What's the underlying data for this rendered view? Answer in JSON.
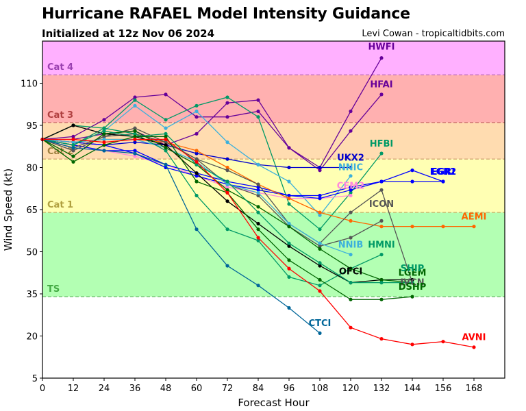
{
  "header": {
    "title": "Hurricane RAFAEL Model Intensity Guidance",
    "subtitle": "Initialized at 12z Nov 06 2024",
    "credit": "Levi Cowan - tropicaltidbits.com"
  },
  "chart_data": {
    "type": "line",
    "title": "Hurricane RAFAEL Model Intensity Guidance",
    "subtitle": "Initialized at 12z Nov 06 2024",
    "xlabel": "Forecast Hour",
    "ylabel": "Wind Speed (kt)",
    "xlim": [
      0,
      180
    ],
    "ylim": [
      5,
      125
    ],
    "xticks": [
      0,
      12,
      24,
      36,
      48,
      60,
      72,
      84,
      96,
      108,
      120,
      132,
      144,
      156,
      168
    ],
    "yticks": [
      5,
      20,
      35,
      50,
      65,
      80,
      95,
      110
    ],
    "grid": false,
    "legend": "inline labels at line ends",
    "bands": [
      {
        "label": "TS",
        "from": 34,
        "to": 64,
        "fill": "#b3ffb3",
        "line": "#66bb66",
        "text": "#44aa44"
      },
      {
        "label": "Cat 1",
        "from": 64,
        "to": 83,
        "fill": "#ffffb3",
        "line": "#c8b068",
        "text": "#b0a040"
      },
      {
        "label": "Cat 2",
        "from": 83,
        "to": 96,
        "fill": "#ffdcb0",
        "line": "#c89868",
        "text": "#a08040"
      },
      {
        "label": "Cat 3",
        "from": 96,
        "to": 113,
        "fill": "#ffb0b0",
        "line": "#c86868",
        "text": "#b04040"
      },
      {
        "label": "Cat 4",
        "from": 113,
        "to": 125,
        "fill": "#ffb0ff",
        "line": "#b868b8",
        "text": "#9a40b0"
      }
    ],
    "series": [
      {
        "name": "HWFI",
        "color": "#660099",
        "x": [
          0,
          12,
          24,
          36,
          48,
          60,
          72,
          84,
          96,
          108,
          120,
          132
        ],
        "y": [
          90,
          91,
          97,
          105,
          106,
          98,
          98,
          100,
          87,
          80,
          100,
          119
        ],
        "label_pos": [
          132,
          122
        ]
      },
      {
        "name": "HFAI",
        "color": "#660099",
        "x": [
          0,
          12,
          24,
          36,
          48,
          60,
          72,
          84,
          96,
          108,
          120,
          132
        ],
        "y": [
          90,
          90,
          92,
          93,
          88,
          92,
          103,
          104,
          87,
          79,
          93,
          106
        ],
        "label_pos": [
          132,
          108.5
        ]
      },
      {
        "name": "HFBI",
        "color": "#009966",
        "x": [
          0,
          12,
          24,
          36,
          48,
          60,
          72,
          84,
          96,
          108,
          120,
          132
        ],
        "y": [
          90,
          95,
          94,
          104,
          97,
          102,
          105,
          98,
          67,
          58,
          71,
          85
        ],
        "label_pos": [
          132,
          87.5
        ]
      },
      {
        "name": "UKX2",
        "color": "#0000cc",
        "x": [
          0,
          12,
          24,
          36,
          48,
          60,
          72,
          84,
          96,
          108,
          120
        ],
        "y": [
          90,
          89,
          88,
          89,
          88,
          85,
          83,
          81,
          80,
          80,
          80
        ],
        "label_pos": [
          120,
          82.5
        ]
      },
      {
        "name": "NNIC",
        "color": "#3cb0dc",
        "x": [
          0,
          12,
          24,
          36,
          48,
          60,
          72,
          84,
          96,
          108,
          120
        ],
        "y": [
          90,
          88,
          93,
          102,
          94,
          100,
          89,
          81,
          75,
          63,
          77
        ],
        "label_pos": [
          120,
          79
        ]
      },
      {
        "name": "CEM2",
        "color": "#ff88dd",
        "x": [
          0,
          12,
          24,
          36,
          48,
          60,
          72,
          84,
          96,
          108,
          120
        ],
        "y": [
          90,
          87,
          86,
          84,
          81,
          77,
          73,
          71,
          69,
          69,
          70
        ],
        "label_pos": [
          120,
          72.5
        ]
      },
      {
        "name": "EGRI",
        "color": "#0000ff",
        "x": [
          0,
          12,
          24,
          36,
          48,
          60,
          72,
          84,
          96,
          108,
          120,
          132,
          144,
          156
        ],
        "y": [
          90,
          88,
          86,
          86,
          81,
          78,
          75,
          73,
          70,
          70,
          73,
          75,
          79,
          75
        ],
        "label_pos": [
          156,
          77.5
        ]
      },
      {
        "name": "EGR2",
        "color": "#0000ff",
        "x": [
          0,
          12,
          24,
          36,
          48,
          60,
          72,
          84,
          96,
          108,
          120,
          132,
          144,
          156
        ],
        "y": [
          90,
          89,
          88,
          85,
          80,
          77,
          74,
          72,
          70,
          69,
          72,
          75,
          75,
          75
        ],
        "label_pos": [
          156,
          77.5
        ]
      },
      {
        "name": "AEMI",
        "color": "#ff6600",
        "x": [
          0,
          12,
          24,
          36,
          48,
          60,
          72,
          84,
          96,
          108,
          120,
          132,
          144,
          156,
          168
        ],
        "y": [
          90,
          89,
          90,
          90,
          89,
          86,
          80,
          74,
          69,
          64,
          61,
          59,
          59,
          59,
          59
        ],
        "label_pos": [
          168,
          61.5
        ]
      },
      {
        "name": "ICON",
        "color": "#555555",
        "x": [
          0,
          12,
          24,
          36,
          48,
          60,
          72,
          84,
          96,
          108,
          120,
          132,
          144
        ],
        "y": [
          90,
          86,
          91,
          94,
          89,
          83,
          79,
          74,
          60,
          53,
          64,
          72,
          39
        ],
        "label_pos": [
          132,
          66
        ]
      },
      {
        "name": "IVCN",
        "color": "#555555",
        "x": [
          0,
          12,
          24,
          36,
          48,
          60,
          72,
          84,
          96,
          108,
          120,
          132
        ],
        "y": [
          90,
          87,
          91,
          92,
          89,
          83,
          74,
          70,
          59,
          52,
          55,
          61
        ],
        "label_pos": [
          144,
          38
        ]
      },
      {
        "name": "NNIB",
        "color": "#3cb0dc",
        "x": [
          0,
          12,
          24,
          36,
          48,
          60,
          72,
          84,
          96,
          108,
          120
        ],
        "y": [
          90,
          89,
          90,
          90,
          87,
          82,
          74,
          71,
          60,
          53,
          49
        ],
        "label_pos": [
          120,
          51.5
        ]
      },
      {
        "name": "HMNI",
        "color": "#009966",
        "x": [
          0,
          12,
          24,
          36,
          48,
          60,
          72,
          84,
          96,
          108,
          120,
          132
        ],
        "y": [
          90,
          88,
          94,
          92,
          86,
          70,
          58,
          54,
          41,
          38,
          44,
          49
        ],
        "label_pos": [
          132,
          51.5
        ]
      },
      {
        "name": "OFCI",
        "color": "#000000",
        "x": [
          0,
          12,
          24,
          36,
          48,
          60,
          72,
          84,
          96,
          108,
          120,
          132,
          144
        ],
        "y": [
          90,
          95,
          92,
          91,
          88,
          78,
          68,
          60,
          52,
          45,
          39,
          40,
          40
        ],
        "label_pos": [
          120,
          42
        ]
      },
      {
        "name": "LGEM",
        "color": "#006600",
        "x": [
          0,
          12,
          24,
          36,
          48,
          60,
          72,
          84,
          96,
          108,
          120,
          132,
          144
        ],
        "y": [
          90,
          84,
          92,
          93,
          87,
          81,
          72,
          66,
          59,
          51,
          44,
          40,
          39
        ],
        "label_pos": [
          144,
          41.5
        ]
      },
      {
        "name": "SHIP",
        "color": "#009966",
        "x": [
          0,
          12,
          24,
          36,
          48,
          60,
          72,
          84,
          96,
          108,
          120,
          132,
          144
        ],
        "y": [
          90,
          88,
          93,
          91,
          92,
          81,
          75,
          64,
          53,
          46,
          39,
          39,
          39
        ],
        "label_pos": [
          144,
          43
        ]
      },
      {
        "name": "DSHP",
        "color": "#006600",
        "x": [
          0,
          12,
          24,
          36,
          48,
          60,
          72,
          84,
          96,
          108,
          120,
          132,
          144
        ],
        "y": [
          90,
          82,
          88,
          91,
          91,
          75,
          71,
          58,
          47,
          40,
          33,
          33,
          34
        ],
        "label_pos": [
          144,
          36.5
        ]
      },
      {
        "name": "CTCI",
        "color": "#006699",
        "x": [
          0,
          12,
          24,
          36,
          48,
          60,
          72,
          84,
          96,
          108
        ],
        "y": [
          90,
          87,
          86,
          85,
          81,
          58,
          45,
          38,
          30,
          21
        ],
        "label_pos": [
          108,
          23.5
        ]
      },
      {
        "name": "AVNI",
        "color": "#ff0000",
        "x": [
          0,
          12,
          24,
          36,
          48,
          60,
          72,
          84,
          96,
          108,
          120,
          132,
          144,
          156,
          168
        ],
        "y": [
          90,
          90,
          89,
          90,
          90,
          82,
          71,
          55,
          44,
          36,
          23,
          19,
          17,
          18,
          16
        ],
        "label_pos": [
          168,
          18.5
        ]
      }
    ]
  }
}
